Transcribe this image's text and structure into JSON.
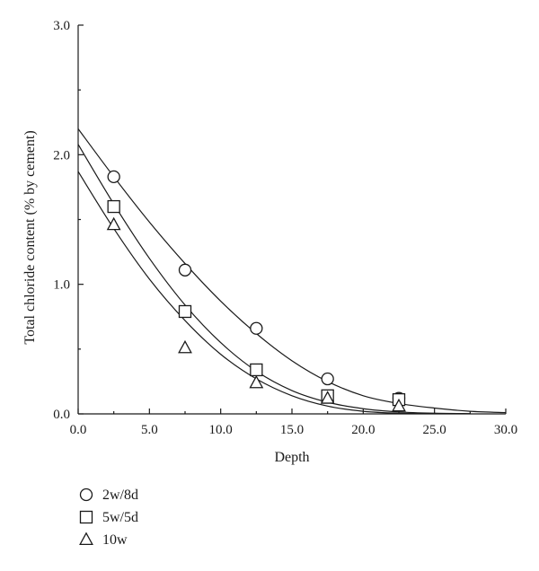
{
  "chart_data": {
    "type": "scatter",
    "title": "",
    "xlabel": "Depth",
    "ylabel": "Total chloride content (% by cement)",
    "xlim": [
      0,
      30
    ],
    "ylim": [
      0,
      3
    ],
    "x_ticks": [
      0,
      5,
      10,
      15,
      20,
      25,
      30
    ],
    "y_ticks": [
      0,
      1,
      2,
      3
    ],
    "x_tick_labels": [
      "0.0",
      "5.0",
      "10.0",
      "15.0",
      "20.0",
      "25.0",
      "30.0"
    ],
    "y_tick_labels": [
      "0.0",
      "1.0",
      "2.0",
      "3.0"
    ],
    "grid": false,
    "legend_position": "bottom-left, below plot",
    "series": [
      {
        "name": "2w/8d",
        "marker": "circle",
        "points": [
          {
            "x": 2.5,
            "y": 1.83
          },
          {
            "x": 7.5,
            "y": 1.11
          },
          {
            "x": 12.5,
            "y": 0.66
          },
          {
            "x": 17.5,
            "y": 0.27
          },
          {
            "x": 22.5,
            "y": 0.12
          }
        ],
        "fit_curve": [
          {
            "x": 0,
            "y": 2.2
          },
          {
            "x": 2.5,
            "y": 1.83
          },
          {
            "x": 5,
            "y": 1.48
          },
          {
            "x": 7.5,
            "y": 1.16
          },
          {
            "x": 10,
            "y": 0.87
          },
          {
            "x": 12.5,
            "y": 0.62
          },
          {
            "x": 15,
            "y": 0.41
          },
          {
            "x": 17.5,
            "y": 0.25
          },
          {
            "x": 20,
            "y": 0.14
          },
          {
            "x": 22.5,
            "y": 0.08
          },
          {
            "x": 25,
            "y": 0.045
          },
          {
            "x": 27.5,
            "y": 0.02
          },
          {
            "x": 30,
            "y": 0.01
          }
        ]
      },
      {
        "name": "5w/5d",
        "marker": "square",
        "points": [
          {
            "x": 2.5,
            "y": 1.6
          },
          {
            "x": 7.5,
            "y": 0.79
          },
          {
            "x": 12.5,
            "y": 0.34
          },
          {
            "x": 17.5,
            "y": 0.14
          },
          {
            "x": 22.5,
            "y": 0.11
          }
        ],
        "fit_curve": [
          {
            "x": 0,
            "y": 2.08
          },
          {
            "x": 2.5,
            "y": 1.62
          },
          {
            "x": 5,
            "y": 1.2
          },
          {
            "x": 7.5,
            "y": 0.84
          },
          {
            "x": 10,
            "y": 0.55
          },
          {
            "x": 12.5,
            "y": 0.33
          },
          {
            "x": 15,
            "y": 0.18
          },
          {
            "x": 17.5,
            "y": 0.09
          },
          {
            "x": 20,
            "y": 0.04
          },
          {
            "x": 22.5,
            "y": 0.015
          },
          {
            "x": 25,
            "y": 0.005
          },
          {
            "x": 27.5,
            "y": 0.002
          }
        ]
      },
      {
        "name": "10w",
        "marker": "triangle",
        "points": [
          {
            "x": 2.5,
            "y": 1.46
          },
          {
            "x": 7.5,
            "y": 0.51
          },
          {
            "x": 12.5,
            "y": 0.24
          },
          {
            "x": 17.5,
            "y": 0.12
          },
          {
            "x": 22.5,
            "y": 0.06
          }
        ],
        "fit_curve": [
          {
            "x": 0,
            "y": 1.87
          },
          {
            "x": 2.5,
            "y": 1.43
          },
          {
            "x": 5,
            "y": 1.04
          },
          {
            "x": 7.5,
            "y": 0.72
          },
          {
            "x": 10,
            "y": 0.46
          },
          {
            "x": 12.5,
            "y": 0.27
          },
          {
            "x": 15,
            "y": 0.14
          },
          {
            "x": 17.5,
            "y": 0.06
          },
          {
            "x": 20,
            "y": 0.02
          },
          {
            "x": 22.5,
            "y": 0.005
          },
          {
            "x": 25,
            "y": 0.002
          }
        ]
      }
    ]
  }
}
